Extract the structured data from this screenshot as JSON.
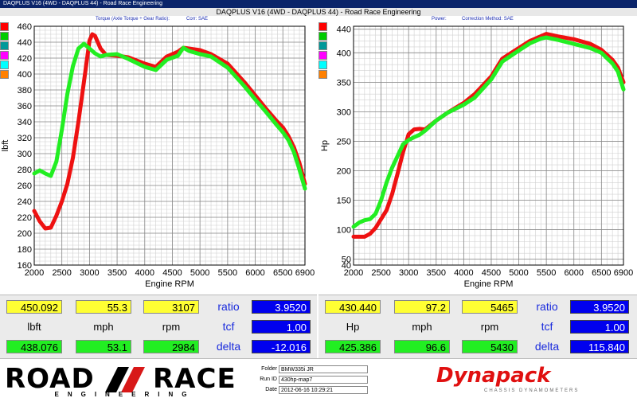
{
  "window": {
    "title_bar": "DAQPLUS V16 (4WD - DAQPLUS 44) - Road Race Engineering",
    "main_title": "DAQPLUS V16 (4WD - DAQPLUS 44) - Road Race Engineering"
  },
  "left_header": {
    "label": "Torque (Axle Torque ÷ Gear Ratio):",
    "corr": "Corr: SAE"
  },
  "right_header": {
    "label": "Power:",
    "corr": "Correction Method: SAE"
  },
  "legend_swatch_colors": [
    "#ff0000",
    "#00cc00",
    "#009999",
    "#ff00ff",
    "#00ffff",
    "#ff8000"
  ],
  "chart_data": [
    {
      "type": "line",
      "xlabel": "Engine RPM",
      "ylabel": "lbft",
      "xlim": [
        2000,
        6900
      ],
      "ylim": [
        160,
        460
      ],
      "xticks": [
        2000,
        2500,
        3000,
        3500,
        4000,
        4500,
        5000,
        5500,
        6000,
        6500,
        6900
      ],
      "yticks": [
        160,
        180,
        200,
        220,
        240,
        260,
        280,
        300,
        320,
        340,
        360,
        380,
        400,
        420,
        440,
        460
      ],
      "series": [
        {
          "color": "#ee1111",
          "x": [
            2000,
            2100,
            2200,
            2300,
            2400,
            2500,
            2600,
            2700,
            2800,
            2900,
            3000,
            3050,
            3100,
            3200,
            3300,
            3500,
            3700,
            4000,
            4200,
            4400,
            4600,
            4700,
            4800,
            5000,
            5200,
            5500,
            5800,
            6000,
            6200,
            6400,
            6500,
            6600,
            6700,
            6800,
            6900
          ],
          "y": [
            228,
            215,
            206,
            207,
            222,
            240,
            262,
            295,
            340,
            390,
            442,
            450,
            448,
            432,
            424,
            423,
            421,
            413,
            409,
            422,
            428,
            433,
            432,
            430,
            425,
            413,
            390,
            373,
            356,
            340,
            333,
            322,
            308,
            288,
            262
          ]
        },
        {
          "color": "#22ee22",
          "x": [
            2000,
            2100,
            2200,
            2300,
            2400,
            2500,
            2600,
            2700,
            2800,
            2900,
            3000,
            3100,
            3200,
            3300,
            3500,
            3700,
            4000,
            4200,
            4400,
            4600,
            4700,
            4800,
            5000,
            5200,
            5500,
            5800,
            6000,
            6200,
            6400,
            6500,
            6600,
            6700,
            6800,
            6900
          ],
          "y": [
            275,
            279,
            275,
            272,
            290,
            330,
            375,
            410,
            432,
            438,
            432,
            426,
            422,
            424,
            425,
            419,
            409,
            405,
            418,
            423,
            433,
            429,
            425,
            422,
            408,
            385,
            368,
            352,
            335,
            327,
            317,
            302,
            280,
            256
          ]
        }
      ]
    },
    {
      "type": "line",
      "xlabel": "Engine RPM",
      "ylabel": "Hp",
      "xlim": [
        2000,
        6900
      ],
      "ylim": [
        40,
        445
      ],
      "xticks": [
        2000,
        2500,
        3000,
        3500,
        4000,
        4500,
        5000,
        5500,
        6000,
        6500,
        6900
      ],
      "yticks": [
        40,
        50,
        100,
        150,
        200,
        250,
        300,
        350,
        400,
        440
      ],
      "series": [
        {
          "color": "#ee1111",
          "x": [
            2000,
            2100,
            2200,
            2300,
            2400,
            2500,
            2600,
            2700,
            2800,
            2900,
            3000,
            3100,
            3200,
            3300,
            3500,
            3700,
            4000,
            4200,
            4500,
            4700,
            5000,
            5200,
            5400,
            5500,
            5700,
            6000,
            6300,
            6500,
            6700,
            6800,
            6900
          ],
          "y": [
            88,
            88,
            88,
            93,
            103,
            118,
            133,
            160,
            195,
            232,
            262,
            270,
            271,
            270,
            285,
            298,
            315,
            330,
            360,
            390,
            408,
            420,
            428,
            432,
            428,
            423,
            415,
            405,
            388,
            375,
            350
          ]
        },
        {
          "color": "#22ee22",
          "x": [
            2000,
            2100,
            2200,
            2300,
            2400,
            2500,
            2600,
            2700,
            2800,
            2900,
            3000,
            3100,
            3200,
            3300,
            3500,
            3700,
            4000,
            4200,
            4500,
            4700,
            5000,
            5200,
            5400,
            5500,
            5700,
            6000,
            6300,
            6500,
            6700,
            6800,
            6900
          ],
          "y": [
            105,
            112,
            116,
            118,
            127,
            150,
            180,
            205,
            225,
            245,
            252,
            257,
            261,
            268,
            285,
            298,
            312,
            324,
            355,
            385,
            404,
            416,
            424,
            426,
            422,
            415,
            408,
            400,
            382,
            368,
            338
          ]
        }
      ]
    }
  ],
  "left_readout": {
    "yellow": [
      "450.092",
      "55.3",
      "3107"
    ],
    "units": [
      "lbft",
      "mph",
      "rpm"
    ],
    "green": [
      "438.076",
      "53.1",
      "2984"
    ],
    "labels": [
      "ratio",
      "tcf",
      "delta"
    ],
    "blue": [
      "3.9520",
      "1.00",
      "-12.016"
    ]
  },
  "right_readout": {
    "yellow": [
      "430.440",
      "97.2",
      "5465"
    ],
    "units": [
      "Hp",
      "mph",
      "rpm"
    ],
    "green": [
      "425.386",
      "96.6",
      "5430"
    ],
    "labels": [
      "ratio",
      "tcf",
      "delta"
    ],
    "blue": [
      "3.9520",
      "1.00",
      "115.840"
    ]
  },
  "footer": {
    "logo_road": "ROAD",
    "logo_race": "RACE",
    "logo_engineering": "ENGINEERING",
    "folder_label": "Folder",
    "folder_value": "BMW335i JR",
    "run_label": "Run ID",
    "run_value": "430hp-map7",
    "date_label": "Date",
    "date_value": "2012-06-16 10:29:21",
    "dynapack": "Dynapack",
    "dynapack_tag": "CHASSIS DYNAMOMETERS"
  }
}
